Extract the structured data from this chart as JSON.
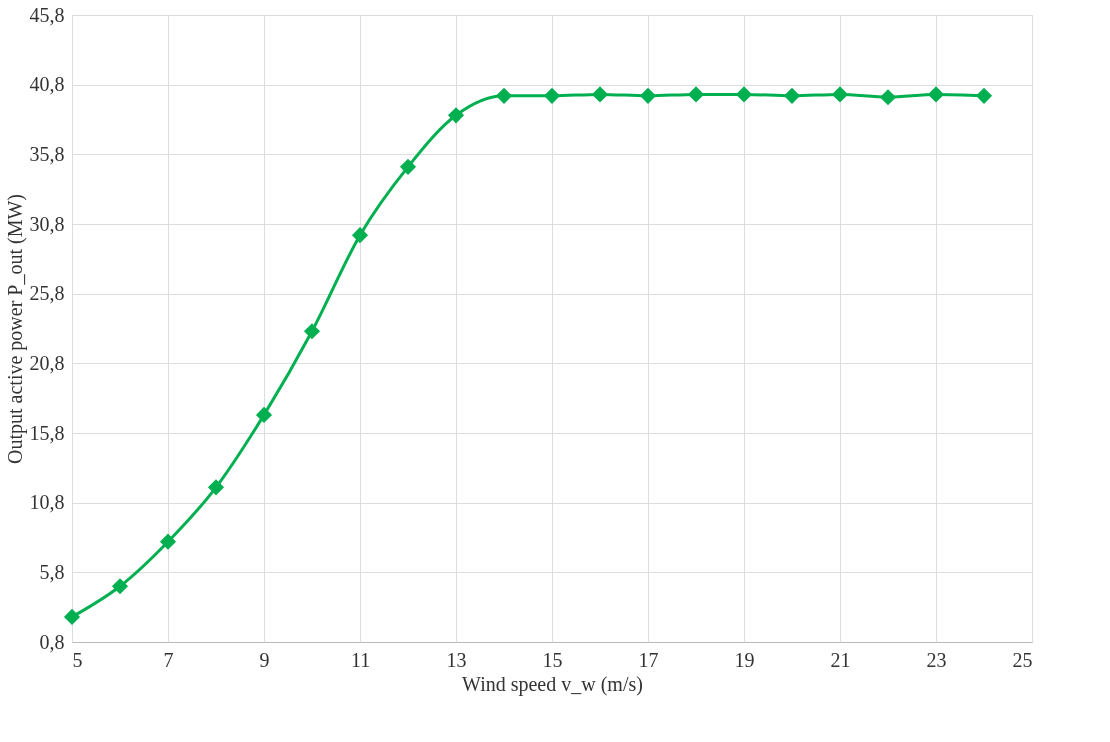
{
  "chart_data": {
    "type": "line",
    "xlabel": "Wind speed  v_w  (m/s)",
    "ylabel": "Output active power P_out (MW)",
    "x": [
      5,
      6,
      7,
      8,
      9,
      10,
      11,
      12,
      13,
      14,
      15,
      16,
      17,
      18,
      19,
      20,
      21,
      22,
      23,
      24
    ],
    "series": [
      {
        "color": "#00b050",
        "values": [
          2.6,
          4.8,
          8.0,
          11.9,
          17.1,
          23.1,
          30.0,
          34.9,
          38.6,
          40.0,
          40.0,
          40.1,
          40.0,
          40.1,
          40.1,
          40.0,
          40.1,
          39.9,
          40.1,
          40.0
        ]
      }
    ],
    "xlim": [
      5,
      25
    ],
    "xticks": [
      5,
      7,
      9,
      11,
      13,
      15,
      17,
      19,
      21,
      23,
      25
    ],
    "ylim": [
      0.8,
      45.8
    ],
    "yticks": [
      {
        "value": 0.8,
        "label": "0,8"
      },
      {
        "value": 5.8,
        "label": "5,8"
      },
      {
        "value": 10.8,
        "label": "10,8"
      },
      {
        "value": 15.8,
        "label": "15,8"
      },
      {
        "value": 20.8,
        "label": "20,8"
      },
      {
        "value": 25.8,
        "label": "25,8"
      },
      {
        "value": 30.8,
        "label": "30,8"
      },
      {
        "value": 35.8,
        "label": "35,8"
      },
      {
        "value": 40.8,
        "label": "40,8"
      },
      {
        "value": 45.8,
        "label": "45,8"
      }
    ],
    "grid": true,
    "marker": "diamond",
    "line_style": "solid"
  }
}
